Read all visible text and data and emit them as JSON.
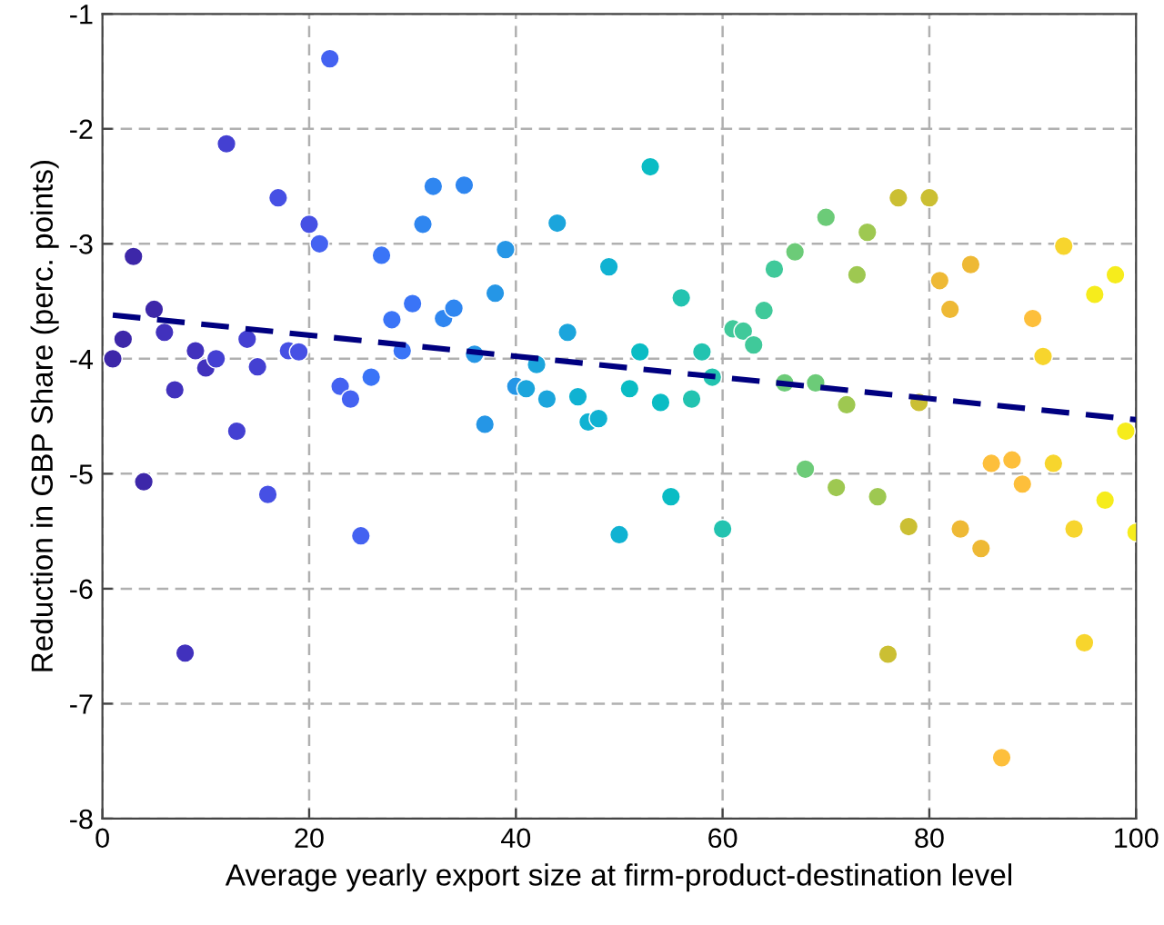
{
  "chart_data": {
    "type": "scatter",
    "xlabel": "Average yearly export size at firm-product-destination level",
    "ylabel": "Reduction in GBP Share (perc. points)",
    "xlim": [
      0,
      100
    ],
    "xticks": [
      0,
      20,
      40,
      60,
      80,
      100
    ],
    "ylim": [
      -8,
      -1
    ],
    "yticks": [
      -8,
      -7,
      -6,
      -5,
      -4,
      -3,
      -2,
      -1
    ],
    "grid": true,
    "series": [
      {
        "marker": "circle",
        "x": [
          1,
          2,
          3,
          4,
          5,
          6,
          7,
          8,
          9,
          10,
          11,
          12,
          13,
          14,
          15,
          16,
          17,
          18,
          19,
          20,
          21,
          22,
          23,
          24,
          25,
          26,
          27,
          28,
          29,
          30,
          31,
          32,
          33,
          34,
          35,
          36,
          37,
          38,
          39,
          40,
          41,
          42,
          43,
          44,
          45,
          46,
          47,
          48,
          49,
          50,
          51,
          52,
          53,
          54,
          55,
          56,
          57,
          58,
          59,
          60,
          61,
          62,
          63,
          64,
          65,
          66,
          67,
          68,
          69,
          70,
          71,
          72,
          73,
          74,
          75,
          76,
          77,
          78,
          79,
          80,
          81,
          82,
          83,
          84,
          85,
          86,
          87,
          88,
          89,
          90,
          91,
          92,
          93,
          94,
          95,
          96,
          97,
          98,
          99,
          100
        ],
        "values": [
          -4.0,
          -3.83,
          -3.11,
          -5.07,
          -3.57,
          -3.77,
          -4.27,
          -6.56,
          -3.93,
          -4.08,
          -4.0,
          -2.13,
          -4.63,
          -3.83,
          -4.07,
          -5.18,
          -2.6,
          -3.93,
          -3.94,
          -2.83,
          -3.0,
          -1.39,
          -4.24,
          -4.35,
          -5.54,
          -4.16,
          -3.1,
          -3.66,
          -3.93,
          -3.52,
          -2.83,
          -2.5,
          -3.65,
          -3.56,
          -2.49,
          -3.96,
          -4.57,
          -3.43,
          -3.05,
          -4.24,
          -4.26,
          -4.05,
          -4.35,
          -2.82,
          -3.77,
          -4.33,
          -4.55,
          -4.52,
          -3.2,
          -5.53,
          -4.26,
          -3.94,
          -2.33,
          -4.38,
          -5.2,
          -3.47,
          -4.35,
          -3.94,
          -4.16,
          -5.48,
          -3.74,
          -3.76,
          -3.88,
          -3.58,
          -3.22,
          -4.21,
          -3.07,
          -4.96,
          -4.21,
          -2.77,
          -5.12,
          -4.4,
          -3.27,
          -2.9,
          -5.2,
          -6.57,
          -2.6,
          -5.46,
          -4.38,
          -2.6,
          -3.32,
          -3.57,
          -5.48,
          -3.18,
          -5.65,
          -4.91,
          -7.47,
          -4.88,
          -5.09,
          -3.65,
          -3.98,
          -4.91,
          -3.02,
          -5.48,
          -6.47,
          -3.44,
          -5.23,
          -3.27,
          -4.63,
          -5.51
        ],
        "colors": [
          "#3d27a9",
          "#3d27a9",
          "#3d27a9",
          "#3d27a9",
          "#3d27a9",
          "#4131bd",
          "#4131bd",
          "#4131bd",
          "#4131bd",
          "#4131bd",
          "#4440d2",
          "#4440d2",
          "#4440d2",
          "#4440d2",
          "#4440d2",
          "#4650e4",
          "#4650e4",
          "#4650e4",
          "#4650e4",
          "#4650e4",
          "#4462f1",
          "#4462f1",
          "#4462f1",
          "#4462f1",
          "#4462f1",
          "#3a74f7",
          "#3a74f7",
          "#3a74f7",
          "#3a74f7",
          "#3a74f7",
          "#2f86f0",
          "#2f86f0",
          "#2f86f0",
          "#2f86f0",
          "#2f86f0",
          "#2596e6",
          "#2596e6",
          "#2596e6",
          "#2596e6",
          "#2596e6",
          "#1ba5dc",
          "#1ba5dc",
          "#1ba5dc",
          "#1ba5dc",
          "#1ba5dc",
          "#10b2d2",
          "#10b2d2",
          "#10b2d2",
          "#10b2d2",
          "#10b2d2",
          "#0abcc4",
          "#0abcc4",
          "#0abcc4",
          "#0abcc4",
          "#0abcc4",
          "#22c3b0",
          "#22c3b0",
          "#22c3b0",
          "#22c3b0",
          "#22c3b0",
          "#40c99a",
          "#40c99a",
          "#40c99a",
          "#40c99a",
          "#40c99a",
          "#6ccb78",
          "#6ccb78",
          "#6ccb78",
          "#6ccb78",
          "#6ccb78",
          "#9ec851",
          "#9ec851",
          "#9ec851",
          "#9ec851",
          "#9ec851",
          "#cbbf33",
          "#cbbf33",
          "#cbbf33",
          "#cbbf33",
          "#cbbf33",
          "#eeb935",
          "#eeb935",
          "#eeb935",
          "#eeb935",
          "#eeb935",
          "#fdbf3b",
          "#fdbf3b",
          "#fdbf3b",
          "#fdbf3b",
          "#fdbf3b",
          "#f7d52d",
          "#f7d52d",
          "#f7d52d",
          "#f7d52d",
          "#f7d52d",
          "#f6ec1c",
          "#f6ec1c",
          "#f6ec1c",
          "#f6ec1c",
          "#f6ec1c"
        ]
      },
      {
        "type": "line",
        "x": [
          1,
          100
        ],
        "values": [
          -3.62,
          -4.53
        ],
        "color": "#000080",
        "line_style": "dashed",
        "marker": "none"
      }
    ]
  }
}
